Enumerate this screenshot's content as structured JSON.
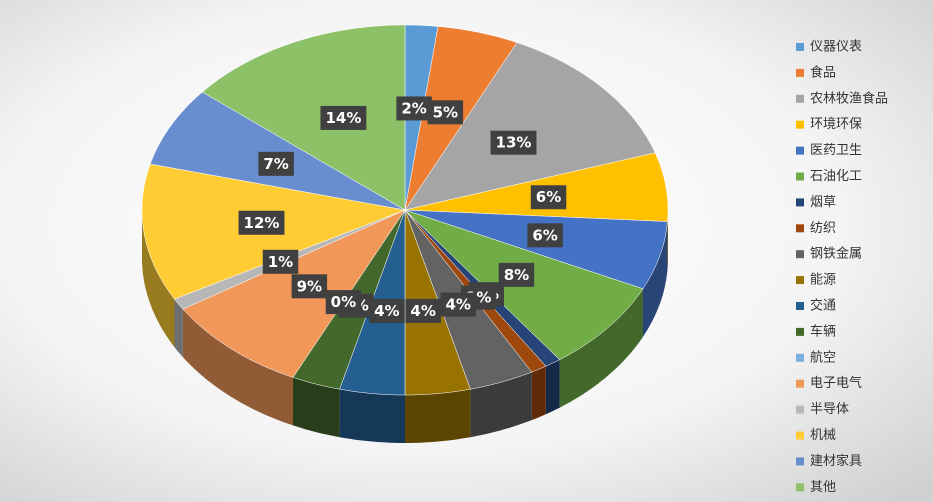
{
  "chart_data": {
    "type": "pie",
    "categories": [
      "仪器仪表",
      "食品",
      "农林牧渔食品",
      "环境环保",
      "医药卫生",
      "石油化工",
      "烟草",
      "纺织",
      "钢铁金属",
      "能源",
      "交通",
      "车辆",
      "航空",
      "电子电气",
      "半导体",
      "机械",
      "建材家具",
      "其他"
    ],
    "values": [
      2,
      5,
      13,
      6,
      6,
      8,
      1,
      1,
      4,
      4,
      4,
      3,
      0,
      9,
      1,
      12,
      7,
      14
    ],
    "value_labels": [
      "2%",
      "5%",
      "13%",
      "6%",
      "6%",
      "8%",
      "1%",
      "1%",
      "4%",
      "4%",
      "4%",
      "3%",
      "0%",
      "9%",
      "1%",
      "12%",
      "7%",
      "14%"
    ],
    "colors": [
      "#5b9bd5",
      "#ed7d31",
      "#a5a5a5",
      "#ffc000",
      "#4472c4",
      "#70ad47",
      "#264478",
      "#9e480e",
      "#636363",
      "#997300",
      "#255e91",
      "#43682b",
      "#7cafdd",
      "#f1975a",
      "#b7b7b7",
      "#ffcd33",
      "#698ed0",
      "#8cc168"
    ],
    "legend": "right"
  }
}
